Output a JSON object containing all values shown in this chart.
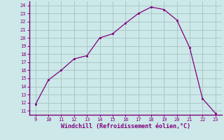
{
  "x": [
    9,
    10,
    11,
    12,
    13,
    14,
    15,
    16,
    17,
    18,
    19,
    20,
    21,
    22,
    23
  ],
  "y": [
    11.8,
    14.8,
    16.0,
    17.4,
    17.8,
    20.0,
    20.5,
    21.8,
    23.0,
    23.8,
    23.5,
    22.2,
    18.8,
    12.5,
    10.7
  ],
  "line_color": "#7f007f",
  "marker_color": "#7f007f",
  "bg_color": "#cce8e8",
  "grid_color": "#aac8c8",
  "axis_color": "#7f007f",
  "xlabel": "Windchill (Refroidissement éolien,°C)",
  "xlabel_color": "#7f007f",
  "tick_color": "#7f007f",
  "xlim": [
    8.5,
    23.5
  ],
  "ylim": [
    10.5,
    24.5
  ],
  "xticks": [
    9,
    10,
    11,
    12,
    13,
    14,
    15,
    16,
    17,
    18,
    19,
    20,
    21,
    22,
    23
  ],
  "yticks": [
    11,
    12,
    13,
    14,
    15,
    16,
    17,
    18,
    19,
    20,
    21,
    22,
    23,
    24
  ]
}
